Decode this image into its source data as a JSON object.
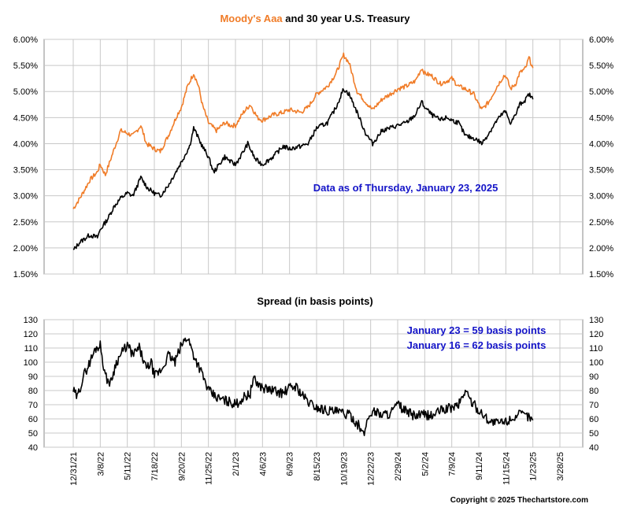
{
  "title": {
    "part1": "Moody's Aaa",
    "part2": " and 30 year U.S. Treasury"
  },
  "annotation_top": "Data as of Thursday, January 23, 2025",
  "spread_title": "Spread (in basis points)",
  "spread_notes": [
    "January 23 = 59 basis points",
    "January 16 = 62 basis points"
  ],
  "copyright": "Copyright © 2025 Thechartstore.com",
  "colors": {
    "aaa": "#f07c28",
    "treasury": "#000000",
    "annotation": "#1414c8",
    "grid": "#c8c8c8"
  },
  "chart_data": [
    {
      "type": "line",
      "title": "Moody's Aaa and 30 year U.S. Treasury",
      "ylim": [
        0.015,
        0.06
      ],
      "yticks": [
        "6.00%",
        "5.50%",
        "5.00%",
        "4.50%",
        "4.00%",
        "3.50%",
        "3.00%",
        "2.50%",
        "2.00%",
        "1.50%"
      ],
      "grid": true,
      "series": [
        {
          "name": "Moody's Aaa",
          "color": "#f07c28",
          "points": [
            [
              "2021-12-31",
              2.75
            ],
            [
              "2022-01-20",
              3.0
            ],
            [
              "2022-02-10",
              3.3
            ],
            [
              "2022-02-28",
              3.45
            ],
            [
              "2022-03-08",
              3.6
            ],
            [
              "2022-03-20",
              3.4
            ],
            [
              "2022-04-10",
              3.9
            ],
            [
              "2022-04-25",
              4.25
            ],
            [
              "2022-05-11",
              4.2
            ],
            [
              "2022-05-25",
              4.15
            ],
            [
              "2022-06-14",
              4.35
            ],
            [
              "2022-06-28",
              4.0
            ],
            [
              "2022-07-18",
              3.9
            ],
            [
              "2022-08-01",
              3.85
            ],
            [
              "2022-08-20",
              4.15
            ],
            [
              "2022-09-10",
              4.55
            ],
            [
              "2022-09-20",
              4.7
            ],
            [
              "2022-10-05",
              5.1
            ],
            [
              "2022-10-20",
              5.35
            ],
            [
              "2022-11-01",
              5.1
            ],
            [
              "2022-11-10",
              4.75
            ],
            [
              "2022-11-25",
              4.4
            ],
            [
              "2022-12-15",
              4.25
            ],
            [
              "2023-01-05",
              4.4
            ],
            [
              "2023-01-20",
              4.35
            ],
            [
              "2023-02-01",
              4.35
            ],
            [
              "2023-02-20",
              4.6
            ],
            [
              "2023-03-08",
              4.75
            ],
            [
              "2023-03-25",
              4.5
            ],
            [
              "2023-04-06",
              4.45
            ],
            [
              "2023-05-01",
              4.55
            ],
            [
              "2023-05-25",
              4.6
            ],
            [
              "2023-06-09",
              4.65
            ],
            [
              "2023-07-07",
              4.6
            ],
            [
              "2023-07-25",
              4.7
            ],
            [
              "2023-08-15",
              4.95
            ],
            [
              "2023-09-10",
              5.1
            ],
            [
              "2023-10-01",
              5.35
            ],
            [
              "2023-10-19",
              5.7
            ],
            [
              "2023-11-01",
              5.55
            ],
            [
              "2023-11-20",
              5.0
            ],
            [
              "2023-12-10",
              4.8
            ],
            [
              "2023-12-27",
              4.65
            ],
            [
              "2024-01-20",
              4.85
            ],
            [
              "2024-02-10",
              4.95
            ],
            [
              "2024-02-29",
              5.05
            ],
            [
              "2024-03-20",
              5.1
            ],
            [
              "2024-04-10",
              5.2
            ],
            [
              "2024-04-25",
              5.45
            ],
            [
              "2024-05-02",
              5.35
            ],
            [
              "2024-05-20",
              5.3
            ],
            [
              "2024-06-10",
              5.15
            ],
            [
              "2024-06-26",
              5.2
            ],
            [
              "2024-07-09",
              5.25
            ],
            [
              "2024-07-25",
              5.1
            ],
            [
              "2024-08-10",
              5.05
            ],
            [
              "2024-08-30",
              4.95
            ],
            [
              "2024-09-11",
              4.75
            ],
            [
              "2024-09-18",
              4.65
            ],
            [
              "2024-10-05",
              4.8
            ],
            [
              "2024-10-25",
              5.1
            ],
            [
              "2024-11-10",
              5.3
            ],
            [
              "2024-11-15",
              5.3
            ],
            [
              "2024-11-27",
              5.05
            ],
            [
              "2024-12-10",
              5.15
            ],
            [
              "2024-12-20",
              5.35
            ],
            [
              "2025-01-05",
              5.45
            ],
            [
              "2025-01-13",
              5.65
            ],
            [
              "2025-01-23",
              5.45
            ]
          ]
        },
        {
          "name": "30 year U.S. Treasury",
          "color": "#000000",
          "points": [
            [
              "2021-12-31",
              1.95
            ],
            [
              "2022-01-15",
              2.1
            ],
            [
              "2022-02-10",
              2.25
            ],
            [
              "2022-03-01",
              2.2
            ],
            [
              "2022-03-08",
              2.35
            ],
            [
              "2022-03-25",
              2.55
            ],
            [
              "2022-04-10",
              2.8
            ],
            [
              "2022-04-25",
              2.95
            ],
            [
              "2022-05-11",
              3.05
            ],
            [
              "2022-05-25",
              3.0
            ],
            [
              "2022-06-14",
              3.35
            ],
            [
              "2022-07-01",
              3.15
            ],
            [
              "2022-07-18",
              3.05
            ],
            [
              "2022-08-01",
              3.0
            ],
            [
              "2022-08-20",
              3.2
            ],
            [
              "2022-09-20",
              3.65
            ],
            [
              "2022-10-10",
              3.95
            ],
            [
              "2022-10-20",
              4.3
            ],
            [
              "2022-11-01",
              4.1
            ],
            [
              "2022-11-10",
              3.95
            ],
            [
              "2022-11-25",
              3.75
            ],
            [
              "2022-12-08",
              3.45
            ],
            [
              "2023-01-05",
              3.75
            ],
            [
              "2023-01-20",
              3.65
            ],
            [
              "2023-02-01",
              3.6
            ],
            [
              "2023-02-20",
              3.85
            ],
            [
              "2023-03-02",
              4.0
            ],
            [
              "2023-03-20",
              3.7
            ],
            [
              "2023-04-06",
              3.6
            ],
            [
              "2023-05-01",
              3.75
            ],
            [
              "2023-05-25",
              3.95
            ],
            [
              "2023-06-09",
              3.9
            ],
            [
              "2023-07-07",
              3.95
            ],
            [
              "2023-07-25",
              4.0
            ],
            [
              "2023-08-15",
              4.3
            ],
            [
              "2023-09-10",
              4.4
            ],
            [
              "2023-10-01",
              4.7
            ],
            [
              "2023-10-19",
              5.05
            ],
            [
              "2023-11-01",
              4.95
            ],
            [
              "2023-11-20",
              4.6
            ],
            [
              "2023-12-10",
              4.2
            ],
            [
              "2023-12-27",
              4.0
            ],
            [
              "2024-01-20",
              4.25
            ],
            [
              "2024-02-10",
              4.3
            ],
            [
              "2024-02-29",
              4.35
            ],
            [
              "2024-03-20",
              4.4
            ],
            [
              "2024-04-10",
              4.55
            ],
            [
              "2024-04-25",
              4.8
            ],
            [
              "2024-05-02",
              4.7
            ],
            [
              "2024-05-20",
              4.55
            ],
            [
              "2024-06-10",
              4.45
            ],
            [
              "2024-06-26",
              4.5
            ],
            [
              "2024-07-09",
              4.45
            ],
            [
              "2024-07-25",
              4.4
            ],
            [
              "2024-08-10",
              4.15
            ],
            [
              "2024-09-01",
              4.1
            ],
            [
              "2024-09-11",
              4.05
            ],
            [
              "2024-09-18",
              4.0
            ],
            [
              "2024-10-05",
              4.2
            ],
            [
              "2024-10-25",
              4.45
            ],
            [
              "2024-11-10",
              4.6
            ],
            [
              "2024-11-15",
              4.6
            ],
            [
              "2024-11-27",
              4.4
            ],
            [
              "2024-12-10",
              4.55
            ],
            [
              "2024-12-20",
              4.75
            ],
            [
              "2025-01-05",
              4.85
            ],
            [
              "2025-01-13",
              4.95
            ],
            [
              "2025-01-23",
              4.85
            ]
          ]
        }
      ]
    },
    {
      "type": "line",
      "title": "Spread (in basis points)",
      "ylim": [
        40,
        130
      ],
      "yticks": [
        "130",
        "120",
        "110",
        "100",
        "90",
        "80",
        "70",
        "60",
        "50",
        "40"
      ],
      "xticks": [
        "12/31/21",
        "3/8/22",
        "5/11/22",
        "7/18/22",
        "9/20/22",
        "11/25/22",
        "2/1/23",
        "4/6/23",
        "6/9/23",
        "8/15/23",
        "10/19/23",
        "12/22/23",
        "2/29/24",
        "5/2/24",
        "7/9/24",
        "9/11/24",
        "11/15/24",
        "1/23/25",
        "3/28/25"
      ],
      "grid": true,
      "series": [
        {
          "name": "Spread",
          "color": "#000000",
          "points": [
            [
              "2021-12-31",
              80
            ],
            [
              "2022-01-10",
              75
            ],
            [
              "2022-01-25",
              90
            ],
            [
              "2022-02-10",
              100
            ],
            [
              "2022-02-25",
              110
            ],
            [
              "2022-03-08",
              112
            ],
            [
              "2022-03-20",
              90
            ],
            [
              "2022-04-01",
              85
            ],
            [
              "2022-04-15",
              100
            ],
            [
              "2022-05-01",
              108
            ],
            [
              "2022-05-11",
              112
            ],
            [
              "2022-05-25",
              105
            ],
            [
              "2022-06-10",
              110
            ],
            [
              "2022-06-28",
              95
            ],
            [
              "2022-07-10",
              100
            ],
            [
              "2022-07-18",
              90
            ],
            [
              "2022-08-05",
              95
            ],
            [
              "2022-08-20",
              105
            ],
            [
              "2022-09-05",
              100
            ],
            [
              "2022-09-20",
              112
            ],
            [
              "2022-10-05",
              118
            ],
            [
              "2022-10-20",
              105
            ],
            [
              "2022-11-05",
              95
            ],
            [
              "2022-11-25",
              80
            ],
            [
              "2022-12-15",
              75
            ],
            [
              "2023-01-05",
              73
            ],
            [
              "2023-01-20",
              72
            ],
            [
              "2023-02-01",
              70
            ],
            [
              "2023-02-20",
              75
            ],
            [
              "2023-03-08",
              78
            ],
            [
              "2023-03-15",
              88
            ],
            [
              "2023-03-25",
              85
            ],
            [
              "2023-04-06",
              82
            ],
            [
              "2023-05-01",
              80
            ],
            [
              "2023-05-25",
              78
            ],
            [
              "2023-06-09",
              82
            ],
            [
              "2023-06-25",
              83
            ],
            [
              "2023-07-10",
              77
            ],
            [
              "2023-07-25",
              72
            ],
            [
              "2023-08-15",
              68
            ],
            [
              "2023-09-10",
              66
            ],
            [
              "2023-10-01",
              65
            ],
            [
              "2023-10-19",
              64
            ],
            [
              "2023-11-05",
              62
            ],
            [
              "2023-11-25",
              55
            ],
            [
              "2023-12-05",
              48
            ],
            [
              "2023-12-15",
              60
            ],
            [
              "2023-12-27",
              66
            ],
            [
              "2024-01-20",
              63
            ],
            [
              "2024-02-10",
              64
            ],
            [
              "2024-02-29",
              70
            ],
            [
              "2024-03-20",
              65
            ],
            [
              "2024-04-10",
              62
            ],
            [
              "2024-05-02",
              63
            ],
            [
              "2024-05-20",
              62
            ],
            [
              "2024-06-10",
              66
            ],
            [
              "2024-07-09",
              68
            ],
            [
              "2024-07-25",
              70
            ],
            [
              "2024-08-10",
              80
            ],
            [
              "2024-08-25",
              72
            ],
            [
              "2024-09-11",
              66
            ],
            [
              "2024-09-25",
              62
            ],
            [
              "2024-10-10",
              58
            ],
            [
              "2024-10-25",
              57
            ],
            [
              "2024-11-15",
              58
            ],
            [
              "2024-11-27",
              60
            ],
            [
              "2024-12-10",
              62
            ],
            [
              "2024-12-25",
              63
            ],
            [
              "2025-01-10",
              62
            ],
            [
              "2025-01-23",
              59
            ]
          ]
        }
      ]
    }
  ]
}
